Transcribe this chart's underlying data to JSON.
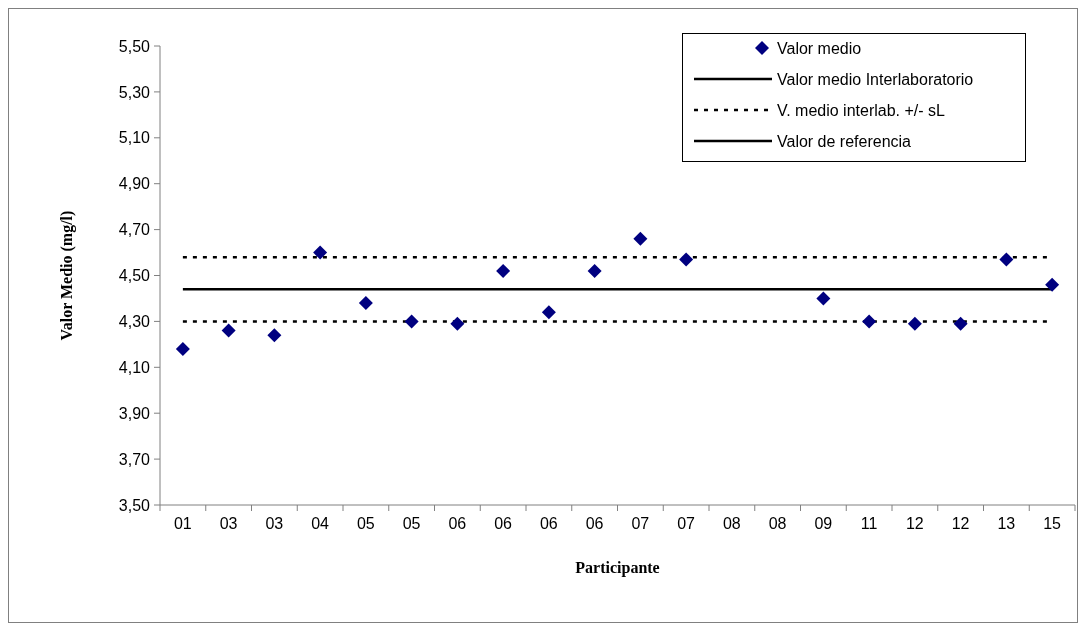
{
  "chart_data": {
    "type": "scatter",
    "xlabel": "Participante",
    "ylabel": "Valor Medio (mg/l)",
    "categories": [
      "01",
      "03",
      "03",
      "04",
      "05",
      "05",
      "06",
      "06",
      "06",
      "06",
      "07",
      "07",
      "08",
      "08",
      "09",
      "11",
      "12",
      "12",
      "13",
      "15"
    ],
    "series": [
      {
        "name": "Valor medio",
        "color": "#000080",
        "values": [
          4.18,
          4.26,
          4.24,
          4.6,
          4.38,
          4.3,
          4.29,
          4.52,
          4.34,
          4.52,
          4.66,
          4.57,
          null,
          null,
          4.4,
          4.3,
          4.29,
          4.29,
          4.57,
          4.46
        ]
      }
    ],
    "marker": "diamond",
    "ylim": [
      3.5,
      5.5
    ],
    "yticks": [
      {
        "value": 3.5,
        "label": "3,50"
      },
      {
        "value": 3.7,
        "label": "3,70"
      },
      {
        "value": 3.9,
        "label": "3,90"
      },
      {
        "value": 4.1,
        "label": "4,10"
      },
      {
        "value": 4.3,
        "label": "4,30"
      },
      {
        "value": 4.5,
        "label": "4,50"
      },
      {
        "value": 4.7,
        "label": "4,70"
      },
      {
        "value": 4.9,
        "label": "4,90"
      },
      {
        "value": 5.1,
        "label": "5,10"
      },
      {
        "value": 5.3,
        "label": "5,30"
      },
      {
        "value": 5.5,
        "label": "5,50"
      }
    ],
    "ref_lines": [
      {
        "axis": "y",
        "value": 4.44,
        "label": "Valor medio Interlaboratorio",
        "color": "#000000",
        "line_style": "solid"
      },
      {
        "axis": "y",
        "value": 4.58,
        "label": "V. medio interlab. +/- sL",
        "color": "#000000",
        "line_style": "dotted"
      },
      {
        "axis": "y",
        "value": 4.3,
        "color": "#000000",
        "line_style": "dotted"
      },
      {
        "axis": "y",
        "value": null,
        "label": "Valor de referencia",
        "color": "#000000",
        "line_style": "solid"
      }
    ],
    "grid": false,
    "legend": "top right"
  }
}
